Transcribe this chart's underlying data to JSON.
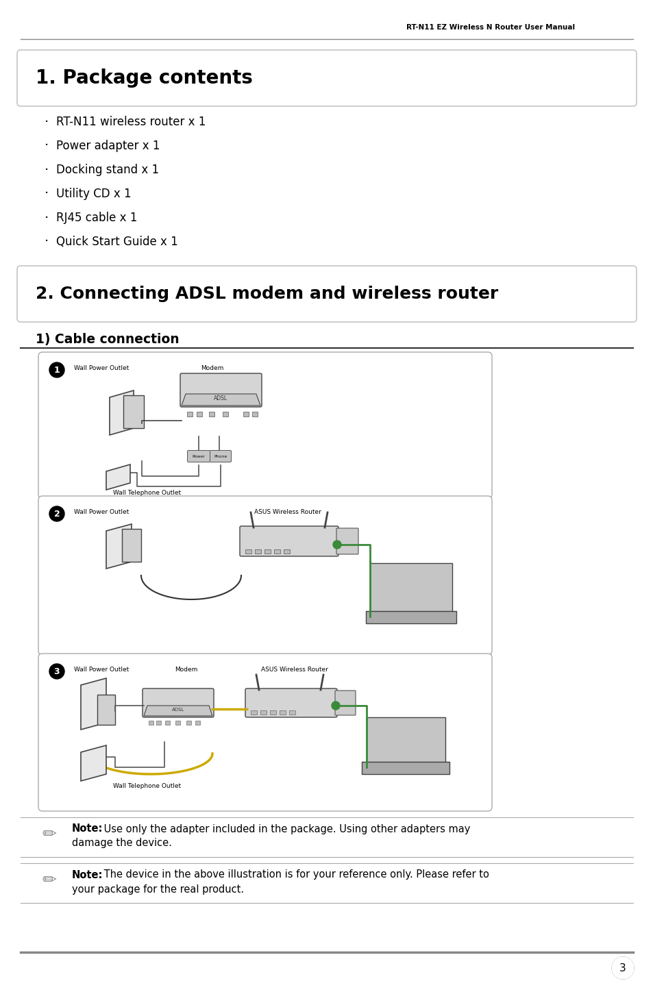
{
  "bg_color": "#ffffff",
  "header_text": "RT-N11 EZ Wireless N Router User Manual",
  "section1_title": "1. Package contents",
  "package_items": [
    "RT-N11 wireless router x 1",
    "Power adapter x 1",
    "Docking stand x 1",
    "Utility CD x 1",
    "RJ45 cable x 1",
    "Quick Start Guide x 1"
  ],
  "section2_title": "2. Connecting ADSL modem and wireless router",
  "subsection_title": "1) Cable connection",
  "note1_bold": "Note:",
  "note1_line1": "Use only the adapter included in the package. Using other adapters may",
  "note1_line2": "damage the device.",
  "note2_bold": "Note:",
  "note2_line1": "The device in the above illustration is for your reference only. Please refer to",
  "note2_line2": "your package for the real product.",
  "page_number": "3",
  "text_color": "#000000",
  "header_line_color": "#888888",
  "box_border_color": "#bbbbbb",
  "diagram_border_color": "#aaaaaa",
  "note_line_color": "#aaaaaa",
  "footer_line_color": "#888888"
}
